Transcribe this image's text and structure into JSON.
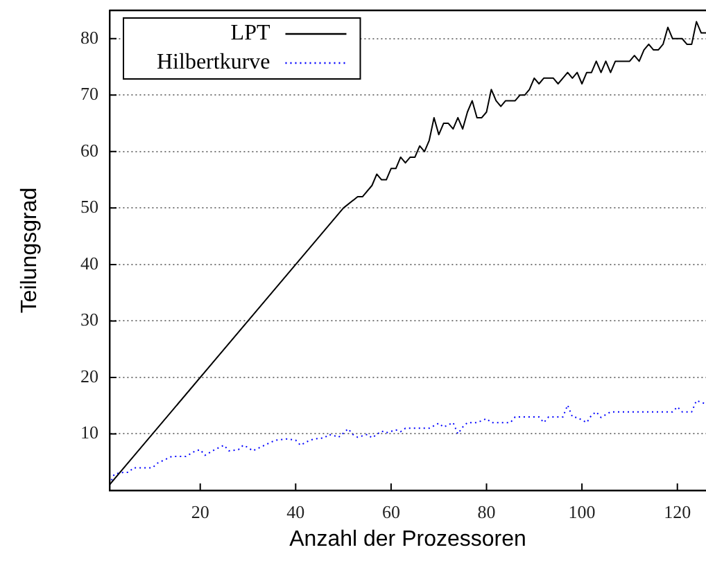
{
  "chart_data": {
    "type": "line",
    "xlabel": "Anzahl der Prozessoren",
    "ylabel": "Teilungsgrad",
    "xlim": [
      1,
      126
    ],
    "ylim": [
      0,
      85
    ],
    "xticks": [
      20,
      40,
      60,
      80,
      100,
      120
    ],
    "yticks": [
      10,
      20,
      30,
      40,
      50,
      60,
      70,
      80
    ],
    "grid": "y",
    "legend": "top left",
    "marker": "none",
    "series": [
      {
        "name": "LPT",
        "color": "#000000",
        "line_style": "solid",
        "x": [
          1,
          50,
          53,
          54,
          56,
          57,
          58,
          59,
          60,
          61,
          62,
          63,
          64,
          65,
          66,
          67,
          68,
          69,
          70,
          71,
          72,
          73,
          74,
          75,
          76,
          77,
          78,
          79,
          80,
          81,
          82,
          83,
          84,
          85,
          86,
          87,
          88,
          89,
          90,
          91,
          92,
          93,
          94,
          95,
          96,
          97,
          98,
          99,
          100,
          101,
          102,
          103,
          104,
          105,
          106,
          107,
          108,
          109,
          110,
          111,
          112,
          113,
          114,
          115,
          116,
          117,
          118,
          119,
          120,
          121,
          122,
          123,
          124,
          125,
          126
        ],
        "values": [
          1,
          50,
          52,
          52,
          54,
          56,
          55,
          55,
          57,
          57,
          59,
          58,
          59,
          59,
          61,
          60,
          62,
          66,
          63,
          65,
          65,
          64,
          66,
          64,
          67,
          69,
          66,
          66,
          67,
          71,
          69,
          68,
          69,
          69,
          69,
          70,
          70,
          71,
          73,
          72,
          73,
          73,
          73,
          72,
          73,
          74,
          73,
          74,
          72,
          74,
          74,
          76,
          74,
          76,
          74,
          76,
          76,
          76,
          76,
          77,
          76,
          78,
          79,
          78,
          78,
          79,
          82,
          80,
          80,
          80,
          79,
          79,
          83,
          81,
          81
        ]
      },
      {
        "name": "Hilbertkurve",
        "color": "#0000ff",
        "line_style": "dotted",
        "x": [
          1,
          2,
          4,
          5,
          6,
          8,
          10,
          11,
          13,
          14,
          17,
          19,
          20,
          21,
          23,
          25,
          26,
          28,
          29,
          30,
          31,
          33,
          35,
          36,
          38,
          40,
          41,
          43,
          44,
          46,
          47,
          48,
          49,
          51,
          52,
          53,
          55,
          56,
          58,
          59,
          61,
          62,
          63,
          68,
          70,
          71,
          73,
          74,
          75,
          76,
          78,
          80,
          81,
          85,
          86,
          91,
          92,
          93,
          96,
          97,
          98,
          99,
          101,
          102,
          103,
          104,
          106,
          119,
          120,
          121,
          123,
          124,
          126
        ],
        "values": [
          1,
          2.9,
          3.2,
          3.2,
          4,
          4,
          4,
          4.8,
          5.6,
          6,
          6,
          7,
          7.2,
          6.2,
          7.2,
          8,
          7,
          7.2,
          8,
          7.6,
          7,
          7.8,
          8.6,
          8.9,
          9.1,
          8.9,
          8,
          8.9,
          9.1,
          9.3,
          9.9,
          9.7,
          9.4,
          10.9,
          9.9,
          9.4,
          9.9,
          9.3,
          10.5,
          10.2,
          10.7,
          10.4,
          11,
          11,
          11.9,
          11.2,
          12,
          10,
          11.2,
          12,
          12,
          12.7,
          12,
          12,
          13,
          13,
          12,
          13,
          13,
          15.1,
          13,
          12.9,
          12,
          13.3,
          13.9,
          12.9,
          13.9,
          13.9,
          14.8,
          13.9,
          13.9,
          15.9,
          15.3
        ]
      }
    ]
  }
}
